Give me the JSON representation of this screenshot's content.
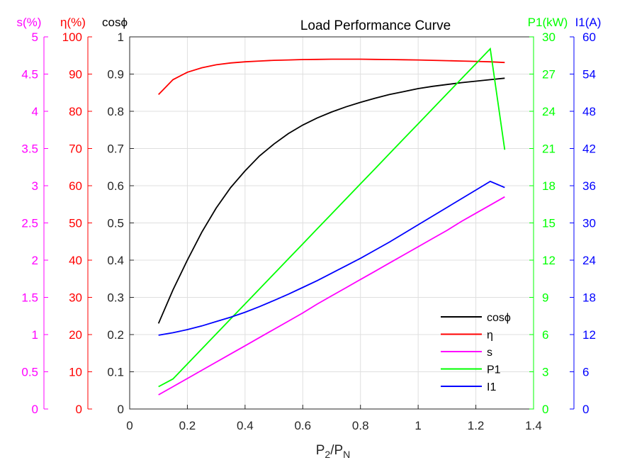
{
  "chart_data": {
    "type": "line",
    "title": "Load Performance Curve",
    "xlabel": {
      "main": "P",
      "sub1": "2",
      "slash": "/P",
      "sub2": "N"
    },
    "xlim": [
      0,
      1.4
    ],
    "x_ticks": [
      "0",
      "0.2",
      "0.4",
      "0.6",
      "0.8",
      "1",
      "1.2",
      "1.4"
    ],
    "grid": true,
    "legend_position": "bottom-right",
    "axes": [
      {
        "id": "s",
        "label": "s(%)",
        "color": "#ff00ff",
        "lim": [
          0,
          5
        ],
        "side": "left",
        "ticks": [
          "0",
          "0.5",
          "1",
          "1.5",
          "2",
          "2.5",
          "3",
          "3.5",
          "4",
          "4.5",
          "5"
        ]
      },
      {
        "id": "eta",
        "label": "η(%)",
        "color": "#ff0000",
        "lim": [
          0,
          100
        ],
        "side": "left",
        "ticks": [
          "0",
          "10",
          "20",
          "30",
          "40",
          "50",
          "60",
          "70",
          "80",
          "90",
          "100"
        ]
      },
      {
        "id": "cos",
        "label": "cosϕ",
        "color": "#000000",
        "lim": [
          0,
          1
        ],
        "side": "left",
        "ticks": [
          "0",
          "0.1",
          "0.2",
          "0.3",
          "0.4",
          "0.5",
          "0.6",
          "0.7",
          "0.8",
          "0.9",
          "1"
        ]
      },
      {
        "id": "p1",
        "label": "P1(kW)",
        "color": "#00ff00",
        "lim": [
          0,
          30
        ],
        "side": "right",
        "ticks": [
          "0",
          "3",
          "6",
          "9",
          "12",
          "15",
          "18",
          "21",
          "24",
          "27",
          "30"
        ]
      },
      {
        "id": "i1",
        "label": "I1(A)",
        "color": "#0000ff",
        "lim": [
          0,
          60
        ],
        "side": "right",
        "ticks": [
          "0",
          "6",
          "12",
          "18",
          "24",
          "30",
          "36",
          "42",
          "48",
          "54",
          "60"
        ]
      }
    ],
    "x": [
      0.1,
      0.15,
      0.2,
      0.25,
      0.3,
      0.35,
      0.4,
      0.45,
      0.5,
      0.55,
      0.6,
      0.65,
      0.7,
      0.75,
      0.8,
      0.85,
      0.9,
      0.95,
      1.0,
      1.05,
      1.1,
      1.15,
      1.2,
      1.25,
      1.3
    ],
    "series": [
      {
        "name": "cosϕ",
        "axis": "cos",
        "color": "#000000",
        "values": [
          0.23,
          0.32,
          0.4,
          0.475,
          0.54,
          0.595,
          0.64,
          0.68,
          0.712,
          0.74,
          0.763,
          0.782,
          0.798,
          0.812,
          0.824,
          0.835,
          0.845,
          0.853,
          0.861,
          0.867,
          0.872,
          0.877,
          0.881,
          0.885,
          0.889
        ]
      },
      {
        "name": "η",
        "axis": "eta",
        "color": "#ff0000",
        "values": [
          84.5,
          88.5,
          90.5,
          91.7,
          92.5,
          93.0,
          93.3,
          93.5,
          93.7,
          93.8,
          93.9,
          93.95,
          94.0,
          94.0,
          94.0,
          93.95,
          93.9,
          93.85,
          93.8,
          93.7,
          93.6,
          93.5,
          93.4,
          93.3,
          93.1
        ]
      },
      {
        "name": "s",
        "axis": "s",
        "color": "#ff00ff",
        "values": [
          0.19,
          0.3,
          0.41,
          0.52,
          0.63,
          0.74,
          0.85,
          0.96,
          1.07,
          1.18,
          1.29,
          1.41,
          1.52,
          1.63,
          1.74,
          1.85,
          1.96,
          2.07,
          2.18,
          2.29,
          2.4,
          2.52,
          2.63,
          2.74,
          2.85
        ]
      },
      {
        "name": "P1",
        "axis": "p1",
        "color": "#00ff00",
        "values": [
          1.8,
          2.42,
          3.63,
          4.84,
          6.05,
          7.26,
          8.47,
          9.68,
          10.89,
          12.1,
          13.31,
          14.52,
          15.73,
          16.94,
          18.15,
          19.36,
          20.57,
          21.78,
          22.99,
          24.2,
          25.41,
          26.62,
          27.83,
          29.04,
          20.9
        ]
      },
      {
        "name": "I1",
        "axis": "i1",
        "color": "#0000ff",
        "values": [
          11.9,
          12.3,
          12.8,
          13.4,
          14.1,
          14.8,
          15.6,
          16.5,
          17.5,
          18.5,
          19.6,
          20.7,
          21.9,
          23.1,
          24.3,
          25.6,
          26.9,
          28.3,
          29.7,
          31.1,
          32.5,
          33.9,
          35.3,
          36.7,
          35.7
        ]
      }
    ]
  }
}
